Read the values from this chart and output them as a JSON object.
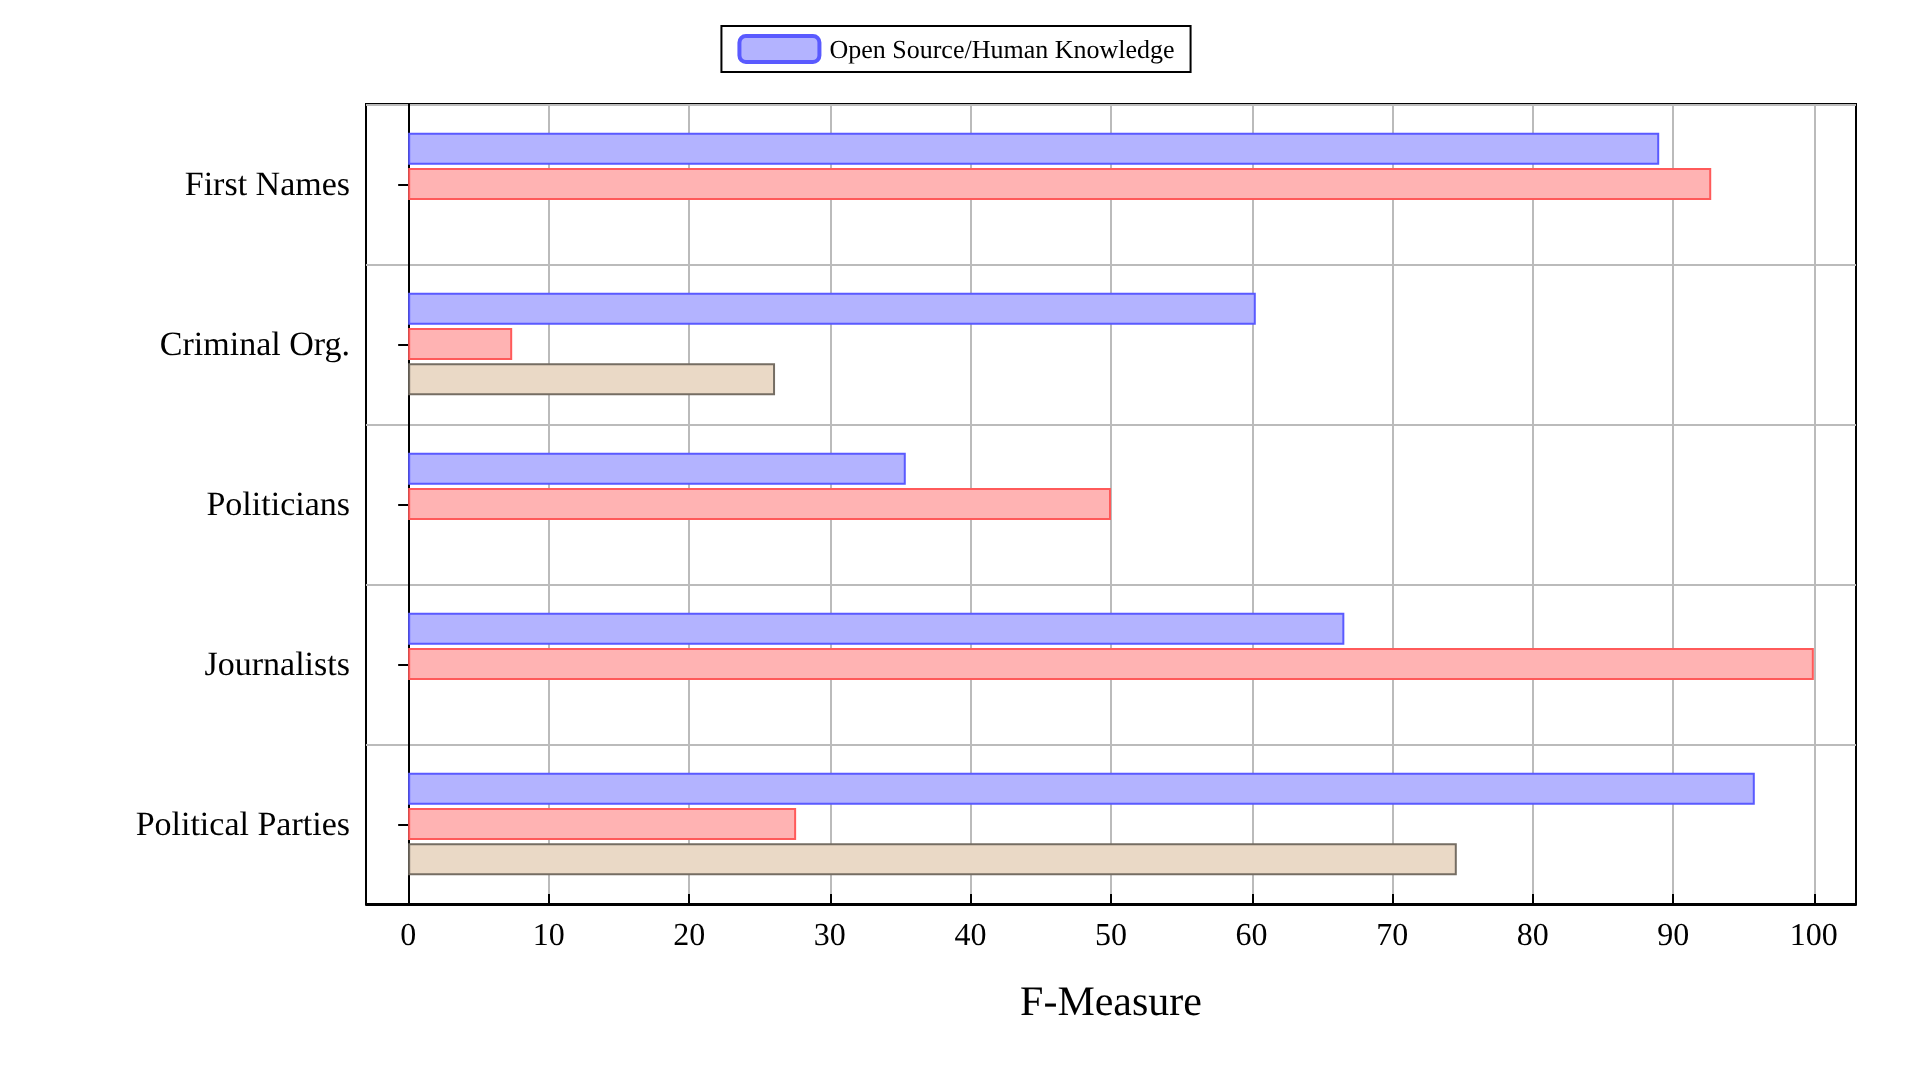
{
  "chart_data": {
    "type": "bar",
    "orientation": "horizontal",
    "xlabel": "F-Measure",
    "categories": [
      "First Names",
      "Criminal Org.",
      "Politicians",
      "Journalists",
      "Political Parties"
    ],
    "series": [
      {
        "name": "Open Source/Human Knowledge",
        "color": "#b3b3ff",
        "values": [
          89.0,
          60.3,
          35.4,
          66.6,
          95.8
        ]
      },
      {
        "color": "#ffb3b3",
        "values": [
          92.7,
          7.4,
          50,
          100,
          27.6
        ]
      },
      {
        "color": "#ead9c6",
        "values": [
          null,
          26.1,
          null,
          null,
          74.6
        ]
      }
    ],
    "xlim": [
      -3,
      103
    ],
    "xticks": [
      0,
      10,
      20,
      30,
      40,
      50,
      60,
      70,
      80,
      90,
      100
    ],
    "grid": true,
    "legend": "top"
  }
}
